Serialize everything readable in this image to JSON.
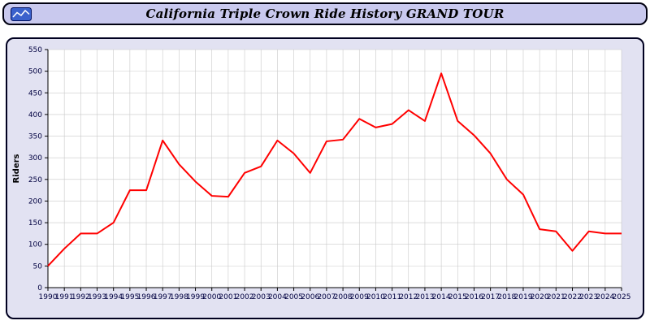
{
  "header": {
    "title": "California Triple Crown Ride History GRAND TOUR"
  },
  "icons": {
    "logo": "mini-line-chart-icon"
  },
  "colors": {
    "title_bar_bg": "#c9c9ee",
    "panel_bg": "#e2e2f2",
    "panel_border": "#000020",
    "plot_bg": "#ffffff",
    "grid": "#c9c9c9",
    "axis": "#000000",
    "tick_label": "#000040",
    "line": "#ff0000"
  },
  "chart_data": {
    "type": "line",
    "title": "California Triple Crown Ride History GRAND TOUR",
    "xlabel": "",
    "ylabel": "Riders",
    "ylim": [
      0,
      550
    ],
    "ytick_step": 50,
    "grid": true,
    "legend_position": "none",
    "x": [
      "1990",
      "1991",
      "1992",
      "1993",
      "1994",
      "1995",
      "1996",
      "1997",
      "1998",
      "1999",
      "2000",
      "2001",
      "2002",
      "2003",
      "2004",
      "2005",
      "2006",
      "2007",
      "2008",
      "2009",
      "2010",
      "2011",
      "2012",
      "2013",
      "2014",
      "2015",
      "2016",
      "2017",
      "2018",
      "2019",
      "2020",
      "2021",
      "2022",
      "2023",
      "2024",
      "2025"
    ],
    "series": [
      {
        "name": "Riders",
        "color": "#ff0000",
        "values": [
          50,
          90,
          125,
          125,
          150,
          225,
          225,
          340,
          285,
          245,
          212,
          210,
          265,
          280,
          340,
          310,
          265,
          338,
          342,
          390,
          370,
          378,
          410,
          385,
          495,
          385,
          352,
          310,
          250,
          215,
          135,
          130,
          85,
          130,
          125,
          125
        ]
      }
    ]
  }
}
